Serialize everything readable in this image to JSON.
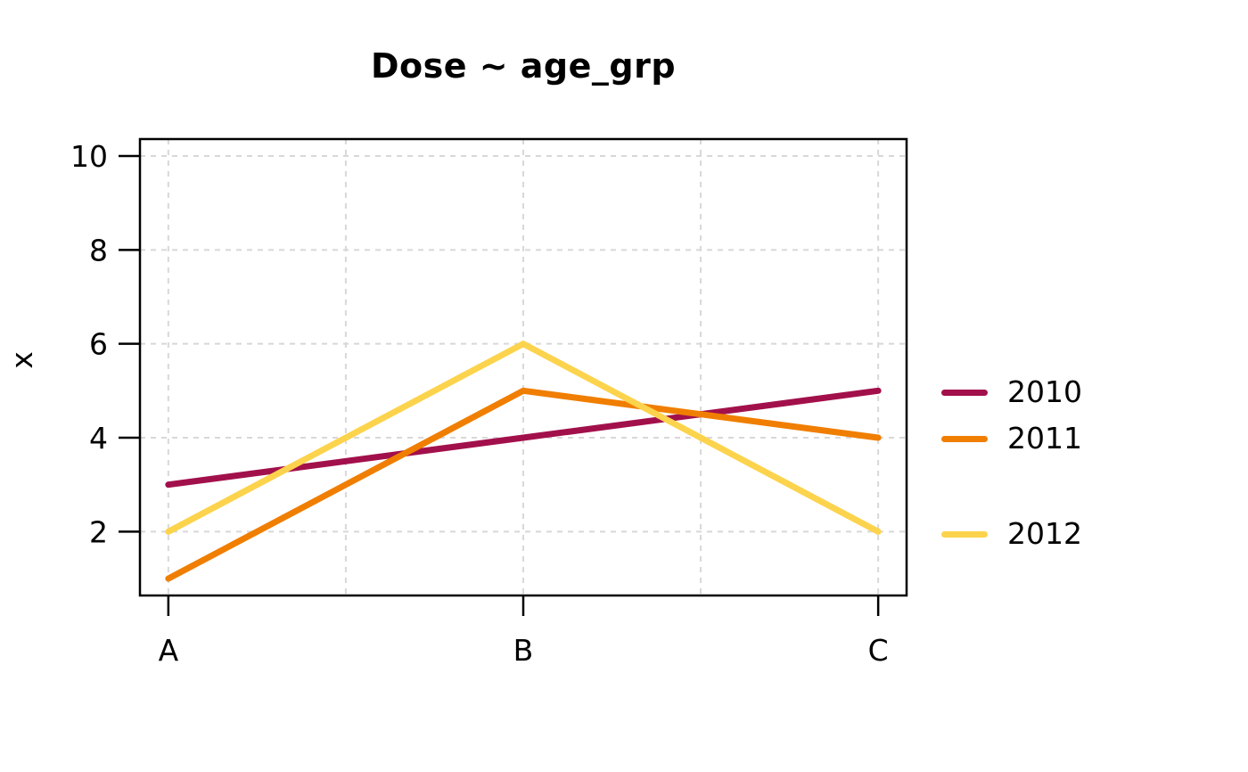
{
  "chart_data": {
    "type": "line",
    "title": "Dose ~ age_grp",
    "xlabel": "",
    "ylabel": "x",
    "categories": [
      "A",
      "B",
      "C"
    ],
    "series": [
      {
        "name": "2010",
        "values": [
          3,
          4,
          5
        ],
        "color": "#A2104B"
      },
      {
        "name": "2011",
        "values": [
          1,
          5,
          4
        ],
        "color": "#F07E00"
      },
      {
        "name": "2012",
        "values": [
          2,
          6,
          2
        ],
        "color": "#FCD34C"
      }
    ],
    "y_ticks": [
      2,
      4,
      6,
      8,
      10
    ],
    "ylim": [
      0.64,
      10.36
    ],
    "grid": "dashed, light gray, vertical lines at categories and midpoints",
    "legend_position": "right",
    "line_width": 7,
    "colors": {
      "grid": "#D8D8D8",
      "axis": "#000000",
      "background": "#FFFFFF"
    }
  }
}
